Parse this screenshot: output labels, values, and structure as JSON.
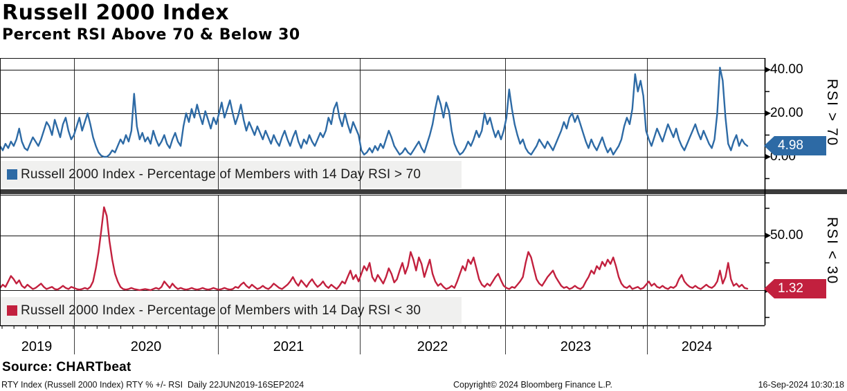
{
  "header": {
    "title": "Russell 2000 Index",
    "subtitle": "Percent RSI Above 70 & Below 30"
  },
  "colors": {
    "blue": "#2d6aa5",
    "red": "#c2203e",
    "divider": "#3b3b3b",
    "legend_band": "#f0f0ef",
    "grid": "#111111"
  },
  "panels": [
    {
      "axis_label": "RSI > 70",
      "legend": "Russell 2000 Index - Percentage of Members with 14 Day RSI > 70",
      "last_value_label": "4.98",
      "color": "#2d6aa5",
      "yticks": [
        {
          "label": "40.00",
          "value": 40
        },
        {
          "label": "20.00",
          "value": 20
        },
        {
          "label": "0.00",
          "value": 0
        }
      ]
    },
    {
      "axis_label": "RSI < 30",
      "legend": "Russell 2000 Index - Percentage of Members with 14 Day RSI < 30",
      "last_value_label": "1.32",
      "color": "#c2203e",
      "yticks": [
        {
          "label": "50.00",
          "value": 50
        }
      ]
    }
  ],
  "x_axis": {
    "years": [
      "2019",
      "2020",
      "2021",
      "2022",
      "2023",
      "2024"
    ]
  },
  "source": "Source: CHARTbeat",
  "footer": {
    "left": "RTY Index (Russell 2000 Index) RTY % +/- RSI  Daily 22JUN2019-16SEP2024",
    "center": "Copyright© 2024 Bloomberg Finance L.P.",
    "right": "16-Sep-2024 10:30:18"
  },
  "chart_data": [
    {
      "type": "line",
      "name": "Russell 2000 Index - Percentage of Members with 14 Day RSI > 70",
      "title": "Russell 2000 Index",
      "subtitle": "Percent RSI Above 70 & Below 30",
      "ylabel": "RSI > 70",
      "x_start": "22JUN2019",
      "x_end": "16SEP2024",
      "frequency": "Daily",
      "last_value": 4.98,
      "gridlines_y": [
        40,
        20,
        0
      ],
      "ylim": [
        -13,
        45
      ],
      "legend_position": "bottom-left",
      "values": [
        5,
        3,
        6,
        4,
        7,
        5,
        8,
        13,
        7,
        4,
        3,
        6,
        9,
        7,
        5,
        8,
        12,
        16,
        14,
        10,
        17,
        13,
        9,
        15,
        18,
        12,
        8,
        10,
        14,
        18,
        12,
        16,
        20,
        15,
        9,
        5,
        2,
        0.5,
        0,
        0,
        1,
        3,
        2,
        5,
        8,
        6,
        10,
        7,
        12,
        29,
        14,
        8,
        11,
        7,
        9,
        6,
        12,
        8,
        5,
        7,
        10,
        6,
        4,
        8,
        11,
        7,
        5,
        14,
        20,
        16,
        22,
        18,
        24,
        19,
        15,
        21,
        17,
        13,
        18,
        15,
        20,
        25,
        18,
        22,
        26,
        20,
        15,
        19,
        24,
        17,
        12,
        16,
        13,
        10,
        14,
        11,
        8,
        12,
        9,
        6,
        10,
        7,
        5,
        9,
        12,
        8,
        5,
        9,
        12,
        7,
        4,
        8,
        6,
        10,
        7,
        5,
        8,
        11,
        9,
        12,
        18,
        15,
        22,
        25,
        18,
        14,
        20,
        15,
        11,
        16,
        13,
        10,
        3,
        1,
        2,
        4,
        2,
        5,
        3,
        6,
        4,
        8,
        12,
        9,
        5,
        3,
        1,
        2,
        4,
        2,
        1,
        3,
        5,
        7,
        4,
        2,
        6,
        10,
        15,
        22,
        28,
        24,
        18,
        25,
        21,
        12,
        6,
        3,
        1,
        2,
        4,
        7,
        5,
        8,
        12,
        9,
        12,
        20,
        15,
        18,
        13,
        9,
        12,
        8,
        12,
        18,
        31,
        22,
        15,
        10,
        6,
        8,
        4,
        2,
        1,
        3,
        5,
        8,
        6,
        4,
        7,
        5,
        3,
        6,
        9,
        12,
        16,
        13,
        18,
        20,
        16,
        19,
        15,
        11,
        7,
        4,
        8,
        5,
        3,
        6,
        9,
        5,
        2,
        4,
        1,
        3,
        5,
        8,
        14,
        18,
        15,
        22,
        38,
        30,
        35,
        28,
        12,
        8,
        5,
        9,
        13,
        10,
        7,
        11,
        15,
        12,
        9,
        13,
        8,
        5,
        3,
        6,
        9,
        12,
        15,
        11,
        8,
        12,
        9,
        6,
        4,
        8,
        20,
        41,
        35,
        18,
        6,
        3,
        7,
        10,
        5,
        8,
        6,
        4.98
      ]
    },
    {
      "type": "line",
      "name": "Russell 2000 Index - Percentage of Members with 14 Day RSI < 30",
      "title": "Russell 2000 Index",
      "subtitle": "Percent RSI Above 70 & Below 30",
      "ylabel": "RSI < 30",
      "x_start": "22JUN2019",
      "x_end": "16SEP2024",
      "frequency": "Daily",
      "last_value": 1.32,
      "gridlines_y": [
        50,
        0
      ],
      "ylim": [
        -32,
        90
      ],
      "legend_position": "bottom-left",
      "values": [
        2,
        5,
        3,
        8,
        13,
        10,
        6,
        9,
        4,
        2,
        5,
        3,
        1,
        2,
        4,
        6,
        3,
        1,
        2,
        3,
        1,
        0.5,
        2,
        4,
        2,
        1,
        3,
        2,
        1,
        0.5,
        1,
        2,
        1,
        3,
        8,
        20,
        35,
        55,
        76,
        68,
        45,
        28,
        15,
        8,
        3,
        1,
        0.5,
        1,
        2,
        1,
        0.5,
        0,
        0.5,
        1,
        0.5,
        0,
        1,
        2,
        1,
        3,
        8,
        5,
        2,
        6,
        3,
        1,
        2,
        1,
        0.5,
        1,
        2,
        1,
        0.5,
        1,
        2,
        1,
        0.5,
        1,
        2,
        1,
        0.5,
        1,
        2,
        1,
        0.5,
        1,
        3,
        2,
        5,
        7,
        4,
        2,
        5,
        3,
        1,
        2,
        4,
        2,
        1,
        3,
        6,
        4,
        2,
        1,
        3,
        5,
        8,
        12,
        7,
        4,
        9,
        6,
        3,
        7,
        10,
        6,
        3,
        5,
        8,
        4,
        2,
        5,
        3,
        1,
        4,
        8,
        6,
        12,
        18,
        10,
        14,
        8,
        15,
        22,
        18,
        25,
        12,
        8,
        14,
        10,
        6,
        12,
        20,
        15,
        7,
        10,
        18,
        25,
        15,
        22,
        35,
        28,
        18,
        30,
        24,
        12,
        20,
        28,
        15,
        8,
        4,
        6,
        3,
        1,
        2,
        4,
        2,
        8,
        15,
        22,
        18,
        28,
        24,
        30,
        20,
        10,
        5,
        3,
        6,
        4,
        8,
        12,
        15,
        9,
        4,
        2,
        1,
        3,
        2,
        5,
        8,
        12,
        25,
        35,
        30,
        20,
        10,
        6,
        4,
        8,
        12,
        15,
        18,
        12,
        8,
        4,
        2,
        3,
        1,
        2,
        4,
        2,
        1,
        3,
        8,
        12,
        18,
        15,
        22,
        19,
        26,
        22,
        28,
        24,
        30,
        22,
        12,
        6,
        3,
        2,
        4,
        1,
        2,
        3,
        1,
        2,
        5,
        8,
        4,
        6,
        3,
        2,
        4,
        2,
        1,
        3,
        2,
        4,
        10,
        14,
        8,
        5,
        3,
        2,
        4,
        2,
        1,
        3,
        5,
        3,
        2,
        4,
        8,
        18,
        6,
        12,
        25,
        10,
        4,
        6,
        3,
        5,
        2,
        1.32
      ]
    }
  ]
}
